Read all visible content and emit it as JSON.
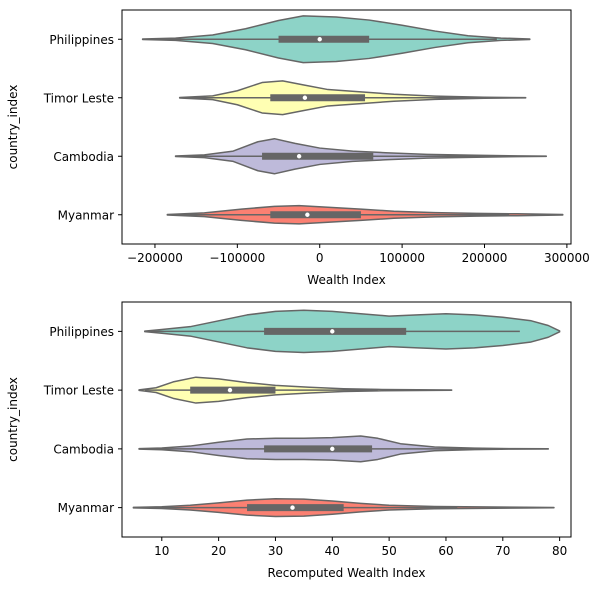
{
  "chart_data": [
    {
      "type": "violin",
      "orientation": "horizontal",
      "xlabel": "Wealth Index",
      "ylabel": "country_index",
      "xlim": [
        -240000,
        305000
      ],
      "xticks": [
        -200000,
        -100000,
        0,
        100000,
        200000,
        300000
      ],
      "xtick_labels": [
        "−200000",
        "−100000",
        "0",
        "100000",
        "200000",
        "300000"
      ],
      "categories": [
        "Philippines",
        "Timor Leste",
        "Cambodia",
        "Myanmar"
      ],
      "series": [
        {
          "name": "Philippines",
          "color": "#8dd3c7",
          "min": -215000,
          "max": 255000,
          "q1": -50000,
          "median": 0,
          "q3": 60000,
          "whisker_low": -215000,
          "whisker_high": 215000,
          "density": [
            [
              -215000,
              0.01
            ],
            [
              -175000,
              0.05
            ],
            [
              -130000,
              0.18
            ],
            [
              -90000,
              0.45
            ],
            [
              -50000,
              0.8
            ],
            [
              -20000,
              1.0
            ],
            [
              20000,
              0.95
            ],
            [
              60000,
              0.82
            ],
            [
              100000,
              0.6
            ],
            [
              140000,
              0.35
            ],
            [
              180000,
              0.15
            ],
            [
              220000,
              0.05
            ],
            [
              255000,
              0.01
            ]
          ]
        },
        {
          "name": "Timor Leste",
          "color": "#ffffb3",
          "min": -170000,
          "max": 250000,
          "q1": -60000,
          "median": -18000,
          "q3": 55000,
          "whisker_low": -170000,
          "whisker_high": 225000,
          "density": [
            [
              -170000,
              0.01
            ],
            [
              -130000,
              0.08
            ],
            [
              -100000,
              0.3
            ],
            [
              -70000,
              0.65
            ],
            [
              -45000,
              0.72
            ],
            [
              -20000,
              0.55
            ],
            [
              10000,
              0.35
            ],
            [
              50000,
              0.25
            ],
            [
              90000,
              0.15
            ],
            [
              140000,
              0.07
            ],
            [
              200000,
              0.02
            ],
            [
              250000,
              0.005
            ]
          ]
        },
        {
          "name": "Cambodia",
          "color": "#bebada",
          "min": -175000,
          "max": 275000,
          "q1": -70000,
          "median": -25000,
          "q3": 65000,
          "whisker_low": -175000,
          "whisker_high": 235000,
          "density": [
            [
              -175000,
              0.01
            ],
            [
              -140000,
              0.06
            ],
            [
              -105000,
              0.22
            ],
            [
              -75000,
              0.62
            ],
            [
              -55000,
              0.75
            ],
            [
              -30000,
              0.55
            ],
            [
              0,
              0.35
            ],
            [
              40000,
              0.22
            ],
            [
              80000,
              0.15
            ],
            [
              130000,
              0.08
            ],
            [
              190000,
              0.04
            ],
            [
              240000,
              0.015
            ],
            [
              275000,
              0.005
            ]
          ]
        },
        {
          "name": "Myanmar",
          "color": "#fb8072",
          "min": -185000,
          "max": 295000,
          "q1": -60000,
          "median": -15000,
          "q3": 50000,
          "whisker_low": -185000,
          "whisker_high": 230000,
          "density": [
            [
              -185000,
              0.01
            ],
            [
              -140000,
              0.08
            ],
            [
              -95000,
              0.24
            ],
            [
              -55000,
              0.36
            ],
            [
              -25000,
              0.39
            ],
            [
              10000,
              0.32
            ],
            [
              50000,
              0.24
            ],
            [
              90000,
              0.15
            ],
            [
              140000,
              0.09
            ],
            [
              190000,
              0.06
            ],
            [
              240000,
              0.04
            ],
            [
              295000,
              0.01
            ]
          ]
        }
      ]
    },
    {
      "type": "violin",
      "orientation": "horizontal",
      "xlabel": "Recomputed Wealth Index",
      "ylabel": "country_index",
      "xlim": [
        3,
        82
      ],
      "xticks": [
        10,
        20,
        30,
        40,
        50,
        60,
        70,
        80
      ],
      "xtick_labels": [
        "10",
        "20",
        "30",
        "40",
        "50",
        "60",
        "70",
        "80"
      ],
      "categories": [
        "Philippines",
        "Timor Leste",
        "Cambodia",
        "Myanmar"
      ],
      "series": [
        {
          "name": "Philippines",
          "color": "#8dd3c7",
          "min": 7,
          "max": 80,
          "q1": 28,
          "median": 40,
          "q3": 53,
          "whisker_low": 8,
          "whisker_high": 73,
          "density": [
            [
              7,
              0.01
            ],
            [
              10,
              0.08
            ],
            [
              15,
              0.2
            ],
            [
              20,
              0.45
            ],
            [
              25,
              0.7
            ],
            [
              30,
              0.85
            ],
            [
              35,
              0.9
            ],
            [
              40,
              0.85
            ],
            [
              45,
              0.75
            ],
            [
              50,
              0.65
            ],
            [
              55,
              0.7
            ],
            [
              60,
              0.75
            ],
            [
              65,
              0.7
            ],
            [
              70,
              0.6
            ],
            [
              75,
              0.45
            ],
            [
              78,
              0.25
            ],
            [
              80,
              0.02
            ]
          ]
        },
        {
          "name": "Timor Leste",
          "color": "#ffffb3",
          "min": 6,
          "max": 61,
          "q1": 15,
          "median": 22,
          "q3": 30,
          "whisker_low": 7,
          "whisker_high": 48,
          "density": [
            [
              6,
              0.01
            ],
            [
              9,
              0.1
            ],
            [
              12,
              0.35
            ],
            [
              16,
              0.55
            ],
            [
              20,
              0.48
            ],
            [
              25,
              0.32
            ],
            [
              30,
              0.2
            ],
            [
              36,
              0.12
            ],
            [
              42,
              0.06
            ],
            [
              48,
              0.03
            ],
            [
              55,
              0.015
            ],
            [
              61,
              0.005
            ]
          ]
        },
        {
          "name": "Cambodia",
          "color": "#bebada",
          "min": 6,
          "max": 78,
          "q1": 28,
          "median": 40,
          "q3": 47,
          "whisker_low": 7,
          "whisker_high": 70,
          "density": [
            [
              6,
              0.01
            ],
            [
              10,
              0.04
            ],
            [
              15,
              0.12
            ],
            [
              20,
              0.28
            ],
            [
              25,
              0.42
            ],
            [
              30,
              0.45
            ],
            [
              35,
              0.45
            ],
            [
              40,
              0.48
            ],
            [
              45,
              0.55
            ],
            [
              48,
              0.45
            ],
            [
              52,
              0.22
            ],
            [
              58,
              0.08
            ],
            [
              65,
              0.03
            ],
            [
              72,
              0.01
            ],
            [
              78,
              0.005
            ]
          ]
        },
        {
          "name": "Myanmar",
          "color": "#fb8072",
          "min": 5,
          "max": 79,
          "q1": 25,
          "median": 33,
          "q3": 42,
          "whisker_low": 5,
          "whisker_high": 62,
          "density": [
            [
              5,
              0.01
            ],
            [
              10,
              0.04
            ],
            [
              15,
              0.1
            ],
            [
              20,
              0.2
            ],
            [
              25,
              0.32
            ],
            [
              30,
              0.38
            ],
            [
              35,
              0.36
            ],
            [
              40,
              0.28
            ],
            [
              45,
              0.18
            ],
            [
              50,
              0.1
            ],
            [
              58,
              0.05
            ],
            [
              66,
              0.03
            ],
            [
              74,
              0.015
            ],
            [
              79,
              0.005
            ]
          ]
        }
      ]
    }
  ]
}
